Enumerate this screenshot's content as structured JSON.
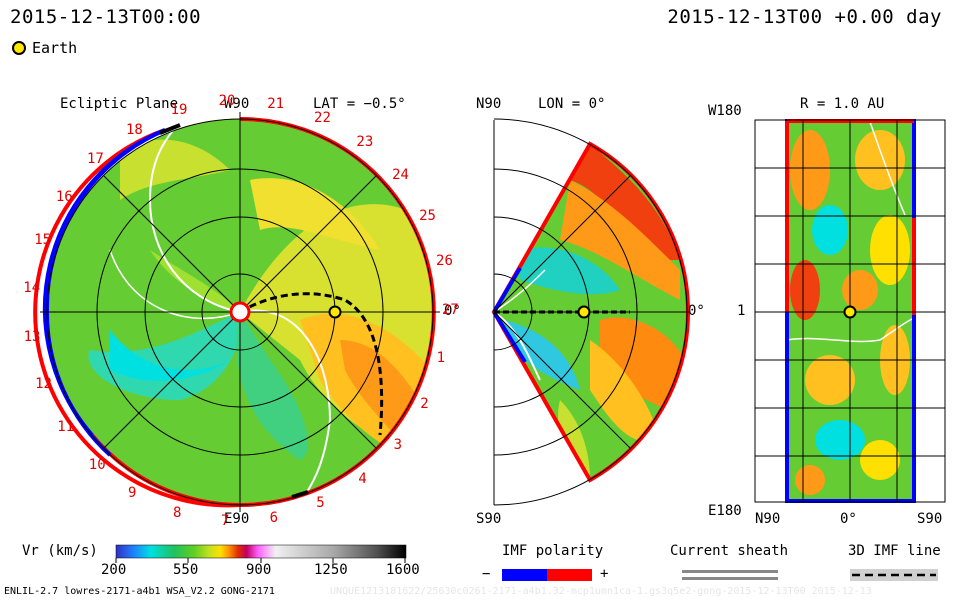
{
  "header": {
    "left_time": "2015-12-13T00:00",
    "right_time": "2015-12-13T00 +0.00 day"
  },
  "legend": {
    "earth_label": "Earth"
  },
  "panels": {
    "ecliptic": {
      "title": "Ecliptic Plane",
      "lat_label": "LAT = −0.5°",
      "top_label": "W90",
      "bottom_label": "E90",
      "right_label": "0°",
      "carrington_ticks": [
        "19",
        "20",
        "21",
        "22",
        "23",
        "24",
        "25",
        "26",
        "27",
        "1",
        "2",
        "3",
        "4",
        "5",
        "6",
        "7",
        "8",
        "9",
        "10",
        "11",
        "12",
        "13",
        "14",
        "15",
        "16",
        "17",
        "18"
      ]
    },
    "meridional": {
      "lon_label": "LON = 0°",
      "top_label": "N90",
      "bottom_label": "S90",
      "right_label": "0°"
    },
    "sphere": {
      "r_label": "R = 1.0 AU",
      "top_label": "W180",
      "bottom_label": "E180",
      "middle_label": "1",
      "x_left": "N90",
      "x_mid": "0°",
      "x_right": "S90"
    }
  },
  "colorbar": {
    "label": "Vr (km/s)",
    "ticks": [
      "200",
      "550",
      "900",
      "1250",
      "1600"
    ],
    "stops": [
      "#3030c0",
      "#2080ff",
      "#00e0e0",
      "#20c060",
      "#60d020",
      "#c0e020",
      "#ffe000",
      "#ff9000",
      "#e03000",
      "#c00060",
      "#ff60ff",
      "#e0e0e0",
      "#a0a0a0",
      "#606060",
      "#000000"
    ]
  },
  "imf": {
    "label": "IMF polarity",
    "minus": "−",
    "plus": "+",
    "neg_color": "#0000ff",
    "pos_color": "#ff0000"
  },
  "sheath": {
    "label": "Current sheath"
  },
  "imfline": {
    "label": "3D IMF line"
  },
  "footer": {
    "left": "ENLIL-2.7 lowres-2171-a4b1 WSA_V2.2 GONG-2171",
    "right": "UNQUE1213181622/25630c0261-2171-a4b1.32-mcp1umn1ca-1.gs3q5e2-gong-2015-12-13T00   2015-12-13"
  }
}
